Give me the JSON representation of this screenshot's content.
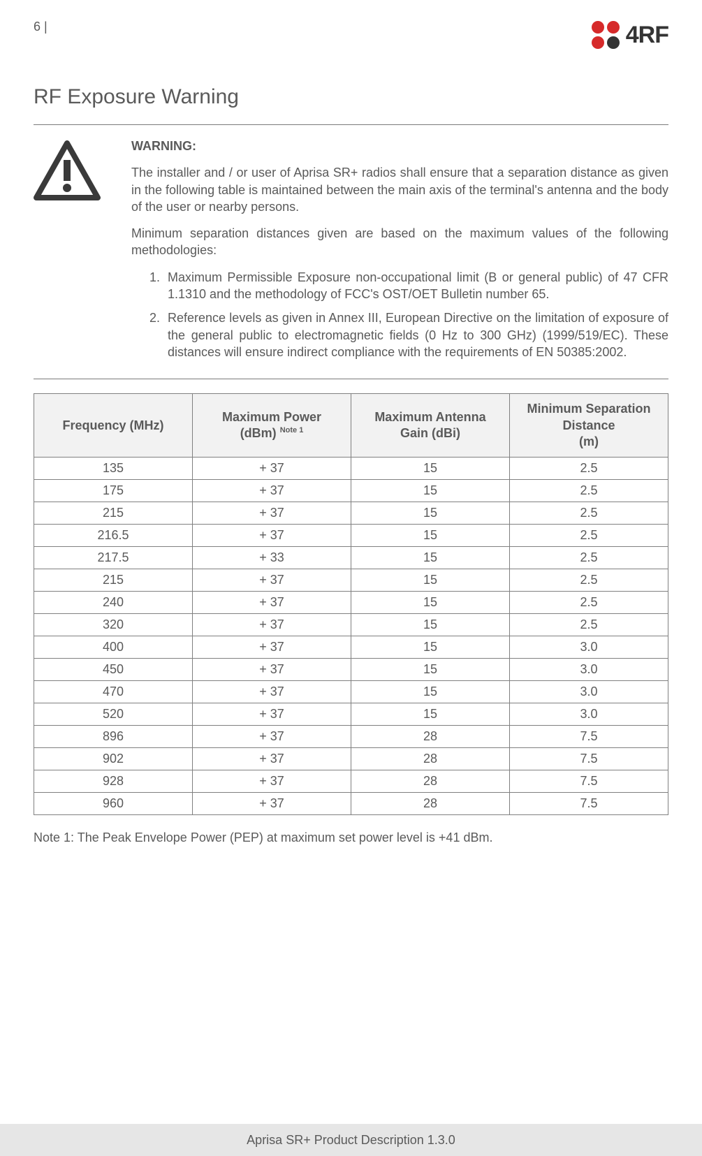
{
  "header": {
    "page_number": "6 |",
    "logo_text": "4RF",
    "logo_colors": {
      "red": "#d62a2a",
      "dark": "#343434"
    }
  },
  "title": "RF Exposure Warning",
  "warning": {
    "label": "WARNING:",
    "p1": "The installer and / or user of Aprisa SR+ radios shall ensure that a separation distance as given in the following table is maintained between the main axis of the terminal's antenna and the body of the user or nearby persons.",
    "p2": "Minimum separation distances given are based on the maximum values of the following methodologies:",
    "li1": "Maximum Permissible Exposure non-occupational limit (B or general public) of 47 CFR 1.1310 and the methodology of FCC's OST/OET Bulletin number 65.",
    "li2": "Reference levels as given in Annex III, European Directive on the limitation of exposure of the general public to electromagnetic fields (0 Hz to 300 GHz) (1999/519/EC). These distances will ensure indirect compliance with the requirements of EN 50385:2002."
  },
  "table": {
    "columns": [
      "Frequency (MHz)",
      "Maximum Power (dBm)",
      "Note 1",
      "Maximum Antenna Gain (dBi)",
      "Minimum Separation Distance (m)"
    ],
    "col1": "Frequency (MHz)",
    "col2a": "Maximum Power",
    "col2b": "(dBm) ",
    "col2c": "Note 1",
    "col3a": "Maximum Antenna",
    "col3b": "Gain (dBi)",
    "col4a": "Minimum Separation",
    "col4b": "Distance",
    "col4c": "(m)",
    "header_bg": "#f2f2f2",
    "border_color": "#808080",
    "rows": [
      [
        "135",
        "+ 37",
        "15",
        "2.5"
      ],
      [
        "175",
        "+ 37",
        "15",
        "2.5"
      ],
      [
        "215",
        "+ 37",
        "15",
        "2.5"
      ],
      [
        "216.5",
        "+ 37",
        "15",
        "2.5"
      ],
      [
        "217.5",
        "+ 33",
        "15",
        "2.5"
      ],
      [
        "215",
        "+ 37",
        "15",
        "2.5"
      ],
      [
        "240",
        "+ 37",
        "15",
        "2.5"
      ],
      [
        "320",
        "+ 37",
        "15",
        "2.5"
      ],
      [
        "400",
        "+ 37",
        "15",
        "3.0"
      ],
      [
        "450",
        "+ 37",
        "15",
        "3.0"
      ],
      [
        "470",
        "+ 37",
        "15",
        "3.0"
      ],
      [
        "520",
        "+ 37",
        "15",
        "3.0"
      ],
      [
        "896",
        "+ 37",
        "28",
        "7.5"
      ],
      [
        "902",
        "+ 37",
        "28",
        "7.5"
      ],
      [
        "928",
        "+ 37",
        "28",
        "7.5"
      ],
      [
        "960",
        "+ 37",
        "28",
        "7.5"
      ]
    ]
  },
  "note": "Note 1: The Peak Envelope Power (PEP) at maximum set power level is +41 dBm.",
  "footer": "Aprisa SR+ Product Description 1.3.0"
}
